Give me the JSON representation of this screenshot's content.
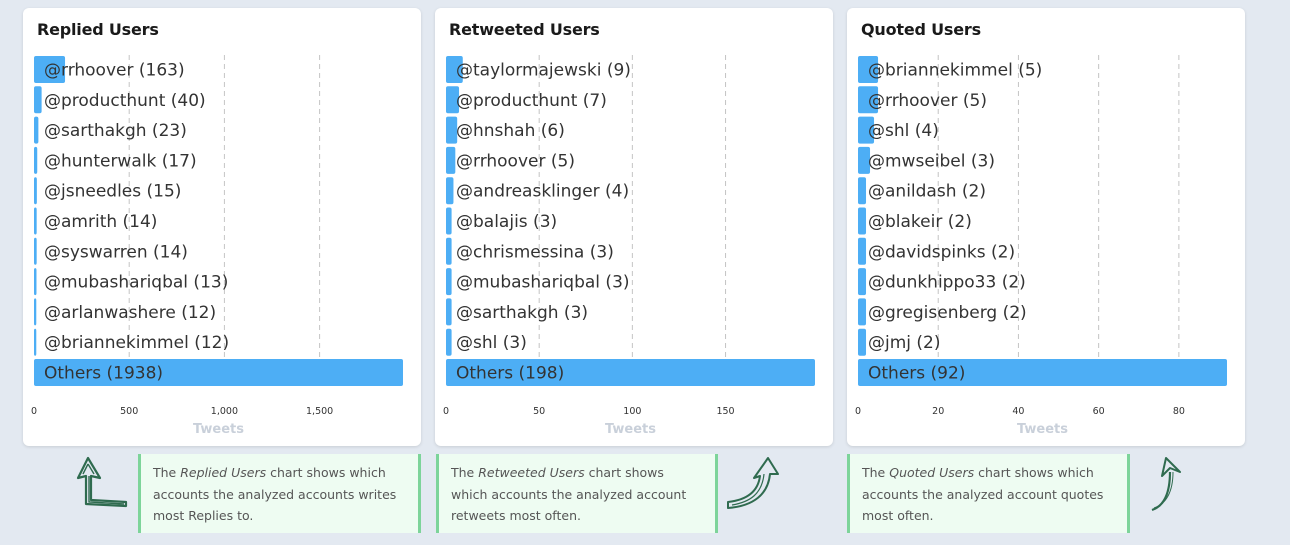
{
  "chart_data": [
    {
      "type": "bar",
      "orientation": "horizontal",
      "title": "Replied Users",
      "xlabel": "Tweets",
      "xlim": [
        0,
        1938
      ],
      "xticks": [
        0,
        500,
        1000,
        1500
      ],
      "xtick_labels": [
        "0",
        "500",
        "1,000",
        "1,500"
      ],
      "categories": [
        "@rrhoover",
        "@producthunt",
        "@sarthakgh",
        "@hunterwalk",
        "@jsneedles",
        "@amrith",
        "@syswarren",
        "@mubashariqbal",
        "@arlanwashere",
        "@briannekimmel",
        "Others"
      ],
      "values": [
        163,
        40,
        23,
        17,
        15,
        14,
        14,
        13,
        12,
        12,
        1938
      ],
      "labels": [
        "@rrhoover (163)",
        "@producthunt (40)",
        "@sarthakgh (23)",
        "@hunterwalk (17)",
        "@jsneedles (15)",
        "@amrith (14)",
        "@syswarren (14)",
        "@mubashariqbal (13)",
        "@arlanwashere (12)",
        "@briannekimmel (12)",
        "Others (1938)"
      ],
      "grid": true
    },
    {
      "type": "bar",
      "orientation": "horizontal",
      "title": "Retweeted Users",
      "xlabel": "Tweets",
      "xlim": [
        0,
        198
      ],
      "xticks": [
        0,
        50,
        100,
        150
      ],
      "xtick_labels": [
        "0",
        "50",
        "100",
        "150"
      ],
      "categories": [
        "@taylormajewski",
        "@producthunt",
        "@hnshah",
        "@rrhoover",
        "@andreasklinger",
        "@balajis",
        "@chrismessina",
        "@mubashariqbal",
        "@sarthakgh",
        "@shl",
        "Others"
      ],
      "values": [
        9,
        7,
        6,
        5,
        4,
        3,
        3,
        3,
        3,
        3,
        198
      ],
      "labels": [
        "@taylormajewski (9)",
        "@producthunt (7)",
        "@hnshah (6)",
        "@rrhoover (5)",
        "@andreasklinger (4)",
        "@balajis (3)",
        "@chrismessina (3)",
        "@mubashariqbal (3)",
        "@sarthakgh (3)",
        "@shl (3)",
        "Others (198)"
      ],
      "grid": true
    },
    {
      "type": "bar",
      "orientation": "horizontal",
      "title": "Quoted Users",
      "xlabel": "Tweets",
      "xlim": [
        0,
        92
      ],
      "xticks": [
        0,
        20,
        40,
        60,
        80
      ],
      "xtick_labels": [
        "0",
        "20",
        "40",
        "60",
        "80"
      ],
      "categories": [
        "@briannekimmel",
        "@rrhoover",
        "@shl",
        "@mwseibel",
        "@anildash",
        "@blakeir",
        "@davidspinks",
        "@dunkhippo33",
        "@gregisenberg",
        "@jmj",
        "Others"
      ],
      "values": [
        5,
        5,
        4,
        3,
        2,
        2,
        2,
        2,
        2,
        2,
        92
      ],
      "labels": [
        "@briannekimmel (5)",
        "@rrhoover (5)",
        "@shl (4)",
        "@mwseibel (3)",
        "@anildash (2)",
        "@blakeir (2)",
        "@davidspinks (2)",
        "@dunkhippo33 (2)",
        "@gregisenberg (2)",
        "@jmj (2)",
        "Others (92)"
      ],
      "grid": true
    }
  ],
  "notes": [
    {
      "pre": "The ",
      "em": "Replied Users",
      "post": " chart shows which accounts the analyzed accounts writes most Replies to."
    },
    {
      "pre": "The ",
      "em": "Retweeted Users",
      "post": " chart shows which accounts the analyzed account retweets most often."
    },
    {
      "pre": "The ",
      "em": "Quoted Users",
      "post": " chart shows which accounts the analyzed account quotes most often."
    }
  ],
  "colors": {
    "bar": "#4daef5",
    "arrow": "#2f6b4f",
    "note_border": "#7dd49a",
    "note_bg": "#eefcf2"
  },
  "icons": [
    "arrow-up-left-icon",
    "arrow-curved-up-right-icon",
    "arrow-curved-up-icon"
  ]
}
